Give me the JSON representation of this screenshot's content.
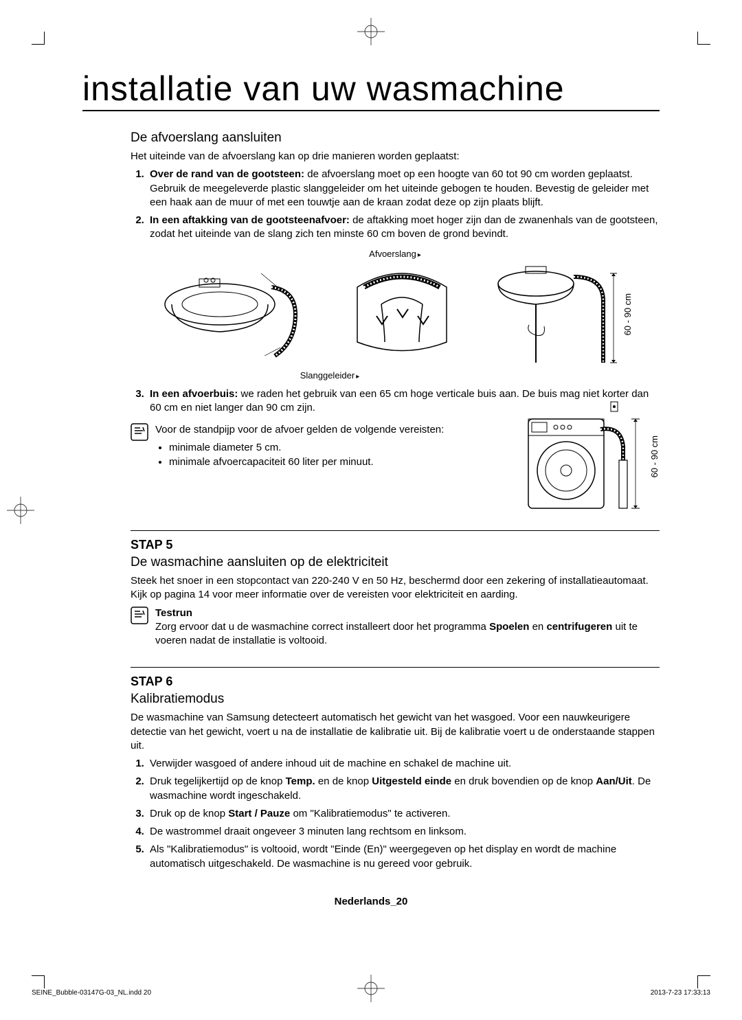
{
  "page": {
    "title": "installatie van uw wasmachine",
    "section1": {
      "title": "De afvoerslang aansluiten",
      "intro": "Het uiteinde van de afvoerslang kan op drie manieren worden geplaatst:",
      "items": [
        {
          "lead": "Over de rand van de gootsteen:",
          "text": " de afvoerslang moet op een hoogte van 60 tot 90 cm worden geplaatst. Gebruik de meegeleverde plastic slanggeleider om het uiteinde gebogen te houden. Bevestig de geleider met een haak aan de muur of met een touwtje aan de kraan zodat deze op zijn plaats blijft."
        },
        {
          "lead": "In een aftakking van de gootsteenafvoer:",
          "text": " de aftakking moet hoger zijn dan de zwanenhals van de gootsteen, zodat het uiteinde van de slang zich ten minste 60 cm boven de grond bevindt."
        }
      ],
      "fig_labels": {
        "afvoerslang": "Afvoerslang",
        "slanggeleider": "Slanggeleider",
        "height": "60 - 90 cm"
      },
      "item3": {
        "lead": "In een afvoerbuis:",
        "text": " we raden het gebruik van een 65 cm hoge verticale buis aan. De buis mag niet korter dan 60 cm en niet langer dan 90 cm zijn."
      },
      "note_intro": "Voor de standpijp voor de afvoer gelden de volgende vereisten:",
      "note_bullets": [
        "minimale diameter 5 cm.",
        "minimale afvoercapaciteit 60 liter per minuut."
      ]
    },
    "step5": {
      "label": "STAP 5",
      "title": "De wasmachine aansluiten op de elektriciteit",
      "text": "Steek het snoer in een stopcontact van 220-240 V en 50 Hz, beschermd door een zekering of installatieautomaat. Kijk op pagina 14 voor meer informatie over de vereisten voor elektriciteit en aarding.",
      "note_title": "Testrun",
      "note_text_pre": "Zorg ervoor dat u de wasmachine correct installeert door het programma ",
      "note_bold1": "Spoelen",
      "note_text_mid": " en ",
      "note_bold2": "centrifugeren",
      "note_text_post": " uit te voeren nadat de installatie is voltooid."
    },
    "step6": {
      "label": "STAP 6",
      "title": "Kalibratiemodus",
      "intro": "De wasmachine van Samsung detecteert automatisch het gewicht van het wasgoed. Voor een nauwkeurigere detectie van het gewicht, voert u na de installatie de kalibratie uit. Bij de kalibratie voert u de onderstaande stappen uit.",
      "items": [
        "Verwijder wasgoed of andere inhoud uit de machine en schakel de machine uit.",
        "Druk tegelijkertijd op de knop <b>Temp.</b> en de knop <b>Uitgesteld einde</b> en druk bovendien op de knop <b>Aan/Uit</b>. De wasmachine wordt ingeschakeld.",
        "Druk op de knop <b>Start / Pauze</b> om \"Kalibratiemodus\" te activeren.",
        "De wastrommel draait ongeveer 3 minuten lang rechtsom en linksom.",
        "Als \"Kalibratiemodus\" is voltooid, wordt \"Einde (En)\" weergegeven op het display en wordt de machine automatisch uitgeschakeld. De wasmachine is nu gereed voor gebruik."
      ]
    },
    "footer": "Nederlands_20",
    "print": {
      "file": "SEINE_Bubble-03147G-03_NL.indd   20",
      "timestamp": "2013-7-23   17:33:13"
    }
  }
}
